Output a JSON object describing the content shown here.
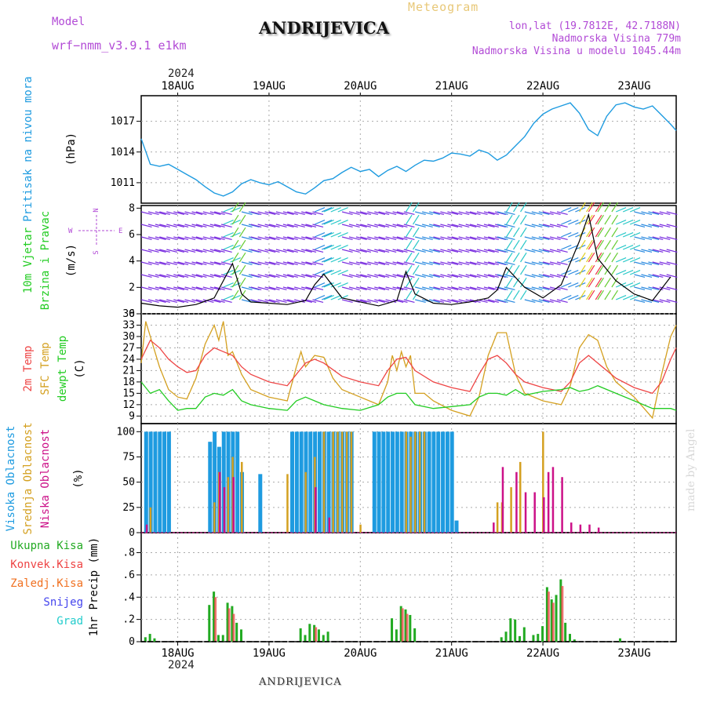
{
  "header": {
    "model_label": "Model",
    "model_name": "wrf−nmm_v3.9.1  e1km",
    "station": "ANDRIJEVICA",
    "meteogram": "Meteogram",
    "lonlat": "lon,lat (19.7812E, 42.7188N)",
    "elevation": "Nadmorska Visina 779m",
    "elevation_model": "Nadmorska Visina u modelu 1045.44m",
    "year_top": "2024",
    "year_bottom": "2024",
    "footer": "ANDRIJEVICA",
    "watermark": "made by Angel"
  },
  "colors": {
    "pressure": "#1e9be0",
    "temp2m": "#ee4444",
    "sfc_temp": "#d4a020",
    "dewpt": "#22cc22",
    "high_cloud": "#1e9be0",
    "mid_cloud": "#d4a020",
    "low_cloud": "#cc1188",
    "total_precip": "#22aa22",
    "conv_precip": "#ee4444",
    "freezing": "#f07020",
    "snow": "#4444ee",
    "graupel": "#22cccc",
    "wind_dir_label": "#b24bd6"
  },
  "chart_data": {
    "type": "line",
    "x_labels": [
      "18AUG",
      "19AUG",
      "20AUG",
      "21AUG",
      "22AUG",
      "23AUG"
    ],
    "x_start_day": 17.6,
    "x_end_day": 23.46,
    "panels": [
      {
        "id": "pressure",
        "ylabel": [
          "Pritisak na nivou mora",
          "(hPa)"
        ],
        "yticks": [
          1011,
          1014,
          1017
        ],
        "ylim": [
          1009,
          1019.5
        ],
        "series": [
          {
            "name": "Pritisak na nivou mora",
            "x": [
              17.6,
              17.7,
              17.8,
              17.9,
              18.0,
              18.1,
              18.2,
              18.3,
              18.4,
              18.5,
              18.6,
              18.7,
              18.8,
              18.9,
              19.0,
              19.1,
              19.2,
              19.3,
              19.4,
              19.5,
              19.6,
              19.7,
              19.8,
              19.9,
              20.0,
              20.1,
              20.2,
              20.3,
              20.4,
              20.5,
              20.6,
              20.7,
              20.8,
              20.9,
              21.0,
              21.1,
              21.2,
              21.3,
              21.4,
              21.5,
              21.6,
              21.7,
              21.8,
              21.9,
              22.0,
              22.1,
              22.2,
              22.3,
              22.4,
              22.5,
              22.6,
              22.7,
              22.8,
              22.9,
              23.0,
              23.1,
              23.2,
              23.3,
              23.4,
              23.46
            ],
            "y": [
              1015.3,
              1012.8,
              1012.6,
              1012.8,
              1012.3,
              1011.8,
              1011.3,
              1010.6,
              1010.0,
              1009.7,
              1010.1,
              1010.9,
              1011.3,
              1011.0,
              1010.8,
              1011.1,
              1010.6,
              1010.1,
              1009.9,
              1010.5,
              1011.2,
              1011.4,
              1012.0,
              1012.5,
              1012.1,
              1012.3,
              1011.6,
              1012.2,
              1012.6,
              1012.1,
              1012.7,
              1013.2,
              1013.1,
              1013.4,
              1013.9,
              1013.8,
              1013.6,
              1014.2,
              1013.9,
              1013.2,
              1013.7,
              1014.6,
              1015.5,
              1016.8,
              1017.7,
              1018.2,
              1018.5,
              1018.8,
              1017.8,
              1016.2,
              1015.6,
              1017.5,
              1018.6,
              1018.8,
              1018.4,
              1018.2,
              1018.5,
              1017.6,
              1016.7,
              1016.1
            ]
          }
        ]
      },
      {
        "id": "wind",
        "ylabel": [
          "10m Vjetar",
          "Brzina i Pravac",
          "(m/s)"
        ],
        "dir_legend": {
          "n": "N",
          "w": "W",
          "e": "E",
          "s": "S"
        },
        "yticks": [
          0,
          2,
          4,
          6,
          8
        ],
        "ylim": [
          0,
          8.2
        ],
        "series": [
          {
            "name": "10m Vjetar",
            "x": [
              17.6,
              17.8,
              18.0,
              18.2,
              18.4,
              18.5,
              18.6,
              18.7,
              18.8,
              19.0,
              19.2,
              19.4,
              19.5,
              19.6,
              19.8,
              20.0,
              20.2,
              20.4,
              20.5,
              20.6,
              20.8,
              21.0,
              21.2,
              21.4,
              21.5,
              21.6,
              21.8,
              22.0,
              22.2,
              22.4,
              22.5,
              22.6,
              22.8,
              23.0,
              23.2,
              23.4
            ],
            "y": [
              0.8,
              0.6,
              0.5,
              0.7,
              1.2,
              2.5,
              3.8,
              1.5,
              0.9,
              0.8,
              0.7,
              1.0,
              2.2,
              3.0,
              1.2,
              0.9,
              0.6,
              1.0,
              3.2,
              1.5,
              0.8,
              0.7,
              0.9,
              1.2,
              1.8,
              3.5,
              2.0,
              1.2,
              2.2,
              5.5,
              7.5,
              4.2,
              2.5,
              1.5,
              1.0,
              2.8
            ]
          }
        ]
      },
      {
        "id": "temp",
        "ylabel": [
          "2m Temp",
          "SFC Temp",
          "dewpt Temp",
          "(C)"
        ],
        "yticks": [
          9,
          12,
          15,
          18,
          21,
          24,
          27,
          30,
          33,
          36
        ],
        "ylim": [
          7,
          36
        ],
        "series": [
          {
            "name": "2m Temp",
            "x": [
              17.6,
              17.7,
              17.8,
              17.9,
              18.0,
              18.1,
              18.2,
              18.3,
              18.4,
              18.5,
              18.6,
              18.7,
              18.8,
              19.0,
              19.2,
              19.3,
              19.4,
              19.5,
              19.6,
              19.8,
              20.0,
              20.2,
              20.3,
              20.4,
              20.5,
              20.6,
              20.8,
              21.0,
              21.2,
              21.3,
              21.4,
              21.5,
              21.6,
              21.7,
              21.8,
              22.0,
              22.2,
              22.3,
              22.4,
              22.5,
              22.6,
              22.8,
              23.0,
              23.2,
              23.3,
              23.4,
              23.46
            ],
            "y": [
              24,
              29,
              27,
              24,
              22,
              20.5,
              21,
              25,
              27,
              26,
              25,
              22,
              20,
              18,
              17,
              20,
              23,
              24,
              23,
              19.5,
              18,
              17,
              21,
              24,
              24.5,
              21,
              18,
              16.5,
              15.5,
              20,
              24,
              25,
              23,
              20,
              18,
              16.5,
              15.5,
              18,
              23,
              25,
              23,
              19,
              16.5,
              15,
              18,
              24,
              27
            ]
          },
          {
            "name": "SFC Temp",
            "x": [
              17.6,
              17.65,
              17.7,
              17.8,
              17.9,
              18.0,
              18.1,
              18.2,
              18.3,
              18.4,
              18.45,
              18.5,
              18.55,
              18.6,
              18.7,
              18.8,
              19.0,
              19.2,
              19.3,
              19.35,
              19.4,
              19.5,
              19.6,
              19.7,
              19.8,
              20.0,
              20.2,
              20.3,
              20.35,
              20.4,
              20.45,
              20.5,
              20.55,
              20.6,
              20.7,
              20.8,
              21.0,
              21.2,
              21.3,
              21.4,
              21.5,
              21.6,
              21.7,
              21.8,
              22.0,
              22.2,
              22.3,
              22.4,
              22.5,
              22.6,
              22.7,
              22.8,
              23.0,
              23.2,
              23.3,
              23.4,
              23.46
            ],
            "y": [
              23,
              34,
              30,
              22,
              16,
              14,
              13.5,
              19,
              28,
              33,
              29,
              34,
              25,
              26,
              20,
              16,
              14,
              13,
              22,
              26,
              22,
              25,
              24.5,
              19,
              16,
              14,
              12,
              18,
              25,
              21,
              26,
              22,
              25,
              15,
              15,
              13,
              10.5,
              9,
              14,
              25,
              31,
              31,
              20,
              15,
              13,
              12,
              17,
              27,
              30.5,
              29,
              22,
              18,
              14,
              8.5,
              20,
              30,
              33
            ]
          },
          {
            "name": "dewpt Temp",
            "x": [
              17.6,
              17.7,
              17.8,
              17.9,
              18.0,
              18.1,
              18.2,
              18.3,
              18.4,
              18.5,
              18.6,
              18.7,
              18.8,
              19.0,
              19.2,
              19.3,
              19.4,
              19.5,
              19.6,
              19.8,
              20.0,
              20.2,
              20.3,
              20.4,
              20.5,
              20.6,
              20.8,
              21.0,
              21.2,
              21.3,
              21.4,
              21.5,
              21.6,
              21.7,
              21.8,
              22.0,
              22.2,
              22.3,
              22.4,
              22.5,
              22.6,
              22.8,
              23.0,
              23.2,
              23.3,
              23.4,
              23.46
            ],
            "y": [
              18,
              15,
              16,
              13,
              10.5,
              11,
              11,
              14,
              15,
              14.5,
              16,
              13,
              12,
              11,
              10.5,
              13,
              14,
              13,
              12,
              11,
              10.5,
              12,
              14,
              15,
              15,
              12,
              11,
              11.5,
              12,
              14,
              15,
              15,
              14.5,
              16,
              14.5,
              15.5,
              16,
              16.5,
              15.5,
              16,
              17,
              15,
              13,
              11,
              11,
              11,
              10.5
            ]
          }
        ]
      },
      {
        "id": "cloud",
        "ylabel": [
          "Visoka Oblacnost",
          "Srednja Oblacnost",
          "Niska Oblacnost",
          "(%)"
        ],
        "yticks": [
          0,
          25,
          50,
          75,
          100
        ],
        "ylim": [
          0,
          108
        ],
        "series": [
          {
            "name": "Visoka Oblacnost",
            "x": [
              17.65,
              17.7,
              17.75,
              17.8,
              17.85,
              17.9,
              18.35,
              18.4,
              18.45,
              18.5,
              18.55,
              18.6,
              18.65,
              18.7,
              18.9,
              19.25,
              19.3,
              19.35,
              19.4,
              19.45,
              19.5,
              19.55,
              19.6,
              19.65,
              19.7,
              19.75,
              19.8,
              19.85,
              19.9,
              20.15,
              20.2,
              20.25,
              20.3,
              20.35,
              20.4,
              20.45,
              20.5,
              20.55,
              20.6,
              20.65,
              20.7,
              20.75,
              20.8,
              20.85,
              20.9,
              20.95,
              21.0,
              21.05
            ],
            "y": [
              100,
              100,
              100,
              100,
              100,
              100,
              90,
              100,
              85,
              100,
              100,
              100,
              100,
              60,
              58,
              100,
              100,
              100,
              100,
              100,
              100,
              100,
              100,
              100,
              100,
              100,
              100,
              100,
              100,
              100,
              100,
              100,
              100,
              100,
              100,
              100,
              100,
              100,
              100,
              100,
              100,
              100,
              100,
              100,
              100,
              100,
              100,
              12
            ]
          },
          {
            "name": "Srednja Oblacnost",
            "x": [
              17.7,
              18.4,
              18.45,
              18.55,
              18.6,
              18.7,
              19.2,
              19.4,
              19.5,
              19.6,
              19.7,
              19.75,
              19.8,
              19.85,
              19.9,
              20.0,
              20.5,
              20.55,
              20.6,
              20.65,
              20.7,
              21.5,
              21.55,
              21.65,
              21.75,
              22.0
            ],
            "y": [
              25,
              30,
              60,
              55,
              75,
              70,
              58,
              60,
              75,
              100,
              100,
              100,
              100,
              100,
              100,
              8,
              100,
              95,
              100,
              100,
              100,
              30,
              30,
              45,
              70,
              100
            ]
          },
          {
            "name": "Niska Oblacnost",
            "x": [
              17.65,
              18.45,
              18.5,
              18.6,
              19.5,
              19.65,
              21.45,
              21.55,
              21.7,
              21.8,
              21.9,
              22.0,
              22.05,
              22.1,
              22.2,
              22.3,
              22.4,
              22.5,
              22.6
            ],
            "y": [
              8,
              60,
              45,
              55,
              45,
              15,
              10,
              65,
              60,
              40,
              40,
              35,
              60,
              65,
              55,
              10,
              8,
              8,
              5
            ]
          }
        ]
      },
      {
        "id": "precip",
        "ylabel": [
          "1hr Precip (mm)"
        ],
        "legend": [
          "Ukupna  Kisa",
          "Konvek.Kisa",
          "Zaledj.Kisa",
          "Snijeg",
          "Grad"
        ],
        "yticks": [
          0,
          0.2,
          0.4,
          0.6,
          0.8
        ],
        "ylim": [
          0,
          0.98
        ],
        "series": [
          {
            "name": "Ukupna  Kisa",
            "x": [
              17.65,
              17.7,
              17.75,
              18.35,
              18.4,
              18.45,
              18.5,
              18.55,
              18.6,
              18.65,
              18.7,
              19.35,
              19.4,
              19.45,
              19.5,
              19.55,
              19.6,
              19.65,
              20.35,
              20.4,
              20.45,
              20.5,
              20.55,
              20.6,
              21.55,
              21.6,
              21.65,
              21.7,
              21.75,
              21.8,
              21.9,
              21.95,
              22.0,
              22.05,
              22.1,
              22.15,
              22.2,
              22.25,
              22.3,
              22.35,
              22.85
            ],
            "y": [
              0.04,
              0.07,
              0.03,
              0.33,
              0.45,
              0.06,
              0.06,
              0.35,
              0.32,
              0.17,
              0.11,
              0.12,
              0.06,
              0.16,
              0.15,
              0.11,
              0.06,
              0.09,
              0.21,
              0.11,
              0.32,
              0.29,
              0.24,
              0.12,
              0.04,
              0.09,
              0.21,
              0.2,
              0.05,
              0.13,
              0.06,
              0.07,
              0.14,
              0.49,
              0.38,
              0.42,
              0.56,
              0.17,
              0.07,
              0.02,
              0.03
            ]
          },
          {
            "name": "Konvek.Kisa",
            "x": [
              18.4,
              18.55,
              18.6,
              19.5,
              20.45,
              20.5,
              22.05,
              22.1,
              22.2
            ],
            "y": [
              0.4,
              0.3,
              0.25,
              0.13,
              0.3,
              0.25,
              0.45,
              0.35,
              0.5
            ]
          }
        ]
      }
    ]
  }
}
